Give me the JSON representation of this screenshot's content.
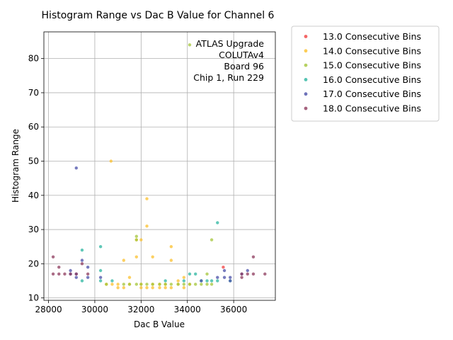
{
  "chart_data": {
    "type": "scatter",
    "title": "Histogram Range vs Dac B Value for Channel 6",
    "xlabel": "Dac B Value",
    "ylabel": "Histogram Range",
    "xlim": [
      27800,
      37800
    ],
    "ylim": [
      9.3,
      87.8
    ],
    "xticks": [
      28000,
      30000,
      32000,
      34000,
      36000
    ],
    "yticks": [
      10,
      20,
      30,
      40,
      50,
      60,
      70,
      80
    ],
    "grid": true,
    "annotation": [
      "ATLAS Upgrade",
      "COLUTAv4",
      "Board 96",
      "Chip 1, Run 229"
    ],
    "legend_position": "outside-right",
    "series": [
      {
        "name": "13.0 Consecutive Bins",
        "color": "#f14040",
        "points": [
          [
            35550,
            19
          ]
        ]
      },
      {
        "name": "14.0 Consecutive Bins",
        "color": "#fbc02d",
        "points": [
          [
            30700,
            50
          ],
          [
            32250,
            39
          ],
          [
            32250,
            31
          ],
          [
            33300,
            25
          ],
          [
            31800,
            22
          ],
          [
            32500,
            22
          ],
          [
            31250,
            21
          ],
          [
            33300,
            21
          ],
          [
            32000,
            27
          ],
          [
            31800,
            27
          ],
          [
            31500,
            16
          ],
          [
            33600,
            15
          ],
          [
            33850,
            16
          ],
          [
            30500,
            14
          ],
          [
            30750,
            14
          ],
          [
            31000,
            14
          ],
          [
            31500,
            14
          ],
          [
            32000,
            14
          ],
          [
            32500,
            14
          ],
          [
            32800,
            14
          ],
          [
            33050,
            14
          ],
          [
            33600,
            14
          ],
          [
            34100,
            14
          ],
          [
            31000,
            13
          ],
          [
            31250,
            13
          ],
          [
            32000,
            13
          ],
          [
            32250,
            13
          ],
          [
            32500,
            13
          ],
          [
            32800,
            13
          ],
          [
            33050,
            13
          ],
          [
            33300,
            13
          ],
          [
            33850,
            13
          ]
        ]
      },
      {
        "name": "15.0 Consecutive Bins",
        "color": "#a4c639",
        "points": [
          [
            34100,
            84
          ],
          [
            31800,
            28
          ],
          [
            31800,
            27
          ],
          [
            35050,
            27
          ],
          [
            34850,
            17
          ],
          [
            30500,
            14
          ],
          [
            31250,
            14
          ],
          [
            31500,
            14
          ],
          [
            31800,
            14
          ],
          [
            32000,
            14
          ],
          [
            32250,
            14
          ],
          [
            32500,
            14
          ],
          [
            32800,
            14
          ],
          [
            33050,
            14
          ],
          [
            33300,
            14
          ],
          [
            33600,
            14
          ],
          [
            33850,
            14
          ],
          [
            34100,
            14
          ],
          [
            34350,
            14
          ],
          [
            34600,
            14
          ],
          [
            34850,
            14
          ],
          [
            35050,
            14
          ]
        ]
      },
      {
        "name": "16.0 Consecutive Bins",
        "color": "#2bb5a0",
        "points": [
          [
            35300,
            32
          ],
          [
            30250,
            25
          ],
          [
            29450,
            24
          ],
          [
            30250,
            18
          ],
          [
            29450,
            15
          ],
          [
            30250,
            15
          ],
          [
            30750,
            15
          ],
          [
            33050,
            15
          ],
          [
            33850,
            15
          ],
          [
            34600,
            15
          ],
          [
            34850,
            15
          ],
          [
            35050,
            15
          ],
          [
            35300,
            15
          ],
          [
            35850,
            15
          ],
          [
            34100,
            17
          ],
          [
            34350,
            17
          ]
        ]
      },
      {
        "name": "17.0 Consecutive Bins",
        "color": "#4a4fa8",
        "points": [
          [
            29200,
            48
          ],
          [
            29450,
            21
          ],
          [
            29700,
            19
          ],
          [
            28950,
            18
          ],
          [
            28950,
            17
          ],
          [
            29200,
            17
          ],
          [
            29200,
            16
          ],
          [
            29700,
            16
          ],
          [
            30250,
            16
          ],
          [
            35300,
            16
          ],
          [
            35600,
            16
          ],
          [
            35850,
            16
          ],
          [
            35600,
            18
          ],
          [
            36350,
            17
          ],
          [
            36600,
            18
          ],
          [
            34600,
            15
          ],
          [
            35850,
            15
          ]
        ]
      },
      {
        "name": "18.0 Consecutive Bins",
        "color": "#8e3b5e",
        "points": [
          [
            28200,
            22
          ],
          [
            28450,
            19
          ],
          [
            28200,
            17
          ],
          [
            28450,
            17
          ],
          [
            28700,
            17
          ],
          [
            28950,
            17
          ],
          [
            29200,
            17
          ],
          [
            29450,
            20
          ],
          [
            29700,
            17
          ],
          [
            36350,
            16
          ],
          [
            36350,
            17
          ],
          [
            36600,
            17
          ],
          [
            36850,
            17
          ],
          [
            36850,
            22
          ],
          [
            37350,
            17
          ]
        ]
      }
    ]
  }
}
